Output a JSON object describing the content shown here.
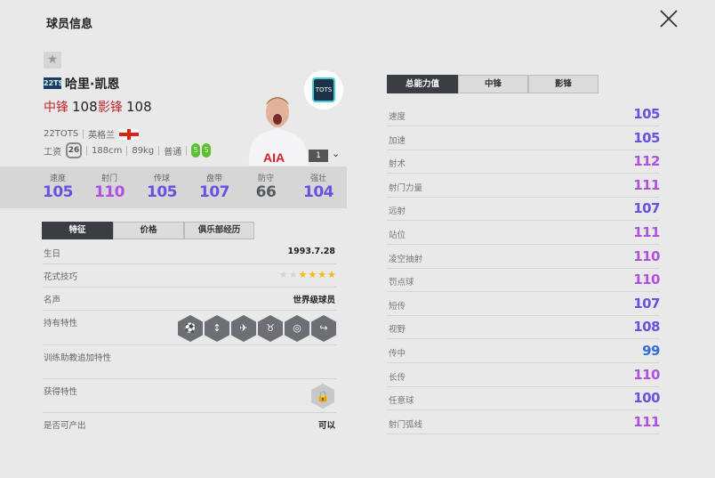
{
  "title": "球员信息",
  "player": {
    "season": "22TS",
    "name": "哈里·凯恩",
    "positions": [
      {
        "label": "中锋",
        "value": "108"
      },
      {
        "label": "影锋",
        "value": "108"
      }
    ],
    "season_name": "22TOTS",
    "nation": "英格兰",
    "salary_label": "工资",
    "salary": "26",
    "height": "188cm",
    "weight": "89kg",
    "body_type": "普通",
    "left_foot": "5",
    "right_foot": "5",
    "club_badge": "TOTS",
    "level": "1"
  },
  "summary_stats": [
    {
      "label": "速度",
      "value": "105",
      "color": "#6a4fe0"
    },
    {
      "label": "射门",
      "value": "110",
      "color": "#b050e0"
    },
    {
      "label": "传球",
      "value": "105",
      "color": "#6a4fe0"
    },
    {
      "label": "盘带",
      "value": "107",
      "color": "#6a4fe0"
    },
    {
      "label": "防守",
      "value": "66",
      "color": "#555a62"
    },
    {
      "label": "强壮",
      "value": "104",
      "color": "#6a4fe0"
    }
  ],
  "left_tabs": [
    "特征",
    "价格",
    "俱乐部经历"
  ],
  "details": {
    "birthday_label": "生日",
    "birthday": "1993.7.28",
    "skill_label": "花式技巧",
    "skill_stars": 4,
    "skill_max": 6,
    "fame_label": "名声",
    "fame": "世界级球员",
    "traits_label": "持有特性",
    "coach_traits_label": "训练助教追加特性",
    "acquired_label": "获得特性",
    "producible_label": "是否可产出",
    "producible": "可以"
  },
  "traits": [
    "goal-net-icon",
    "finesse-icon",
    "flair-icon",
    "bull-icon",
    "long-shot-icon",
    "curve-icon"
  ],
  "right_tabs": [
    "总能力值",
    "中锋",
    "影锋"
  ],
  "attributes": [
    {
      "label": "速度",
      "value": "105",
      "color": "#6a4fe0"
    },
    {
      "label": "加速",
      "value": "105",
      "color": "#6a4fe0"
    },
    {
      "label": "射术",
      "value": "112",
      "color": "#b050e0"
    },
    {
      "label": "射门力量",
      "value": "111",
      "color": "#b050e0"
    },
    {
      "label": "远射",
      "value": "107",
      "color": "#6a4fe0"
    },
    {
      "label": "站位",
      "value": "111",
      "color": "#b050e0"
    },
    {
      "label": "凌空抽射",
      "value": "110",
      "color": "#b050e0"
    },
    {
      "label": "罚点球",
      "value": "110",
      "color": "#b050e0"
    },
    {
      "label": "短传",
      "value": "107",
      "color": "#6a4fe0"
    },
    {
      "label": "视野",
      "value": "108",
      "color": "#6a4fe0"
    },
    {
      "label": "传中",
      "value": "99",
      "color": "#2f6fd8"
    },
    {
      "label": "长传",
      "value": "110",
      "color": "#b050e0"
    },
    {
      "label": "任意球",
      "value": "100",
      "color": "#6a4fe0"
    },
    {
      "label": "射门弧线",
      "value": "111",
      "color": "#b050e0"
    }
  ]
}
